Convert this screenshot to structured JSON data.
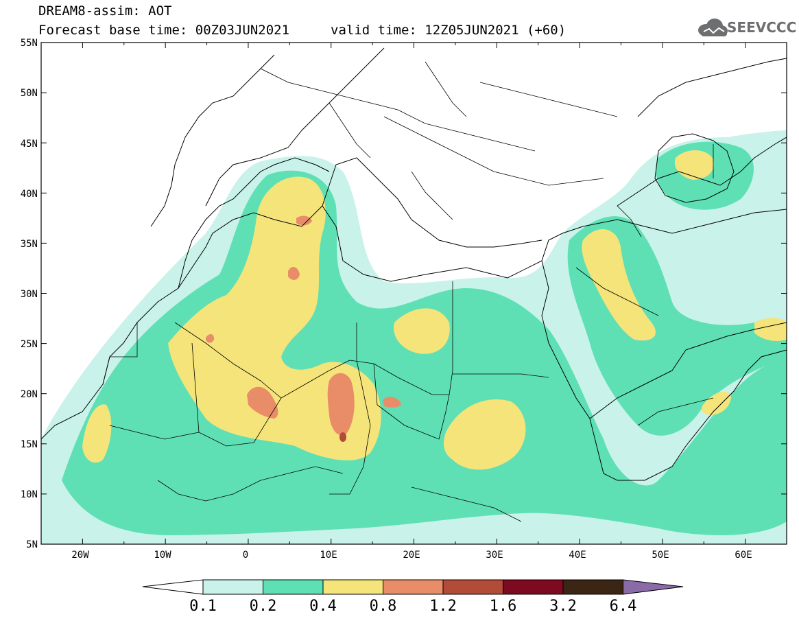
{
  "title": {
    "line1": "DREAM8-assim: AOT",
    "line2": "Forecast base time: 00Z03JUN2021",
    "valid": "valid time: 12Z05JUN2021 (+60)"
  },
  "logo": {
    "text": "SEEVCCC",
    "icon": "cloud-icon",
    "color": "#6d6e70"
  },
  "axes": {
    "lat_labels": [
      "55N",
      "50N",
      "45N",
      "40N",
      "35N",
      "30N",
      "25N",
      "20N",
      "15N",
      "10N",
      "5N"
    ],
    "lon_labels": [
      "20W",
      "10W",
      "0",
      "10E",
      "20E",
      "30E",
      "40E",
      "50E",
      "60E"
    ],
    "lat_range": [
      5,
      55
    ],
    "lon_range": [
      -25,
      65
    ]
  },
  "colorbar": {
    "levels": [
      "0.1",
      "0.2",
      "0.4",
      "0.8",
      "1.2",
      "1.6",
      "3.2",
      "6.4"
    ],
    "colors": [
      "#c8f2ea",
      "#5ee0b4",
      "#f5e47a",
      "#e98d69",
      "#b24b38",
      "#7d0a21",
      "#3b2514",
      "#8a6aa7"
    ],
    "below_color": "#ffffff"
  }
}
